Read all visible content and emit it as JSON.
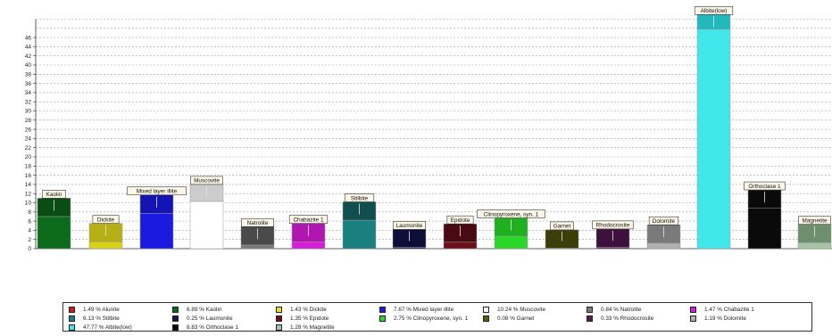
{
  "chart_data": {
    "type": "bar",
    "title": "",
    "xlabel": "",
    "ylabel": "",
    "ylim": [
      0,
      50
    ],
    "yticks": [
      0,
      2,
      4,
      6,
      8,
      10,
      12,
      14,
      16,
      18,
      20,
      22,
      24,
      26,
      28,
      30,
      32,
      34,
      36,
      38,
      40,
      42,
      44,
      46
    ],
    "grid": true,
    "legend_position": "bottom",
    "categories": [
      "Kaolin",
      "Dickite",
      "Mixed layer illite",
      "Muscovite",
      "Natrolite",
      "Chabazite 1",
      "Stilbite",
      "Laumonite",
      "Epidote",
      "Clinopyroxene, syn. 1",
      "Garnet",
      "Rhodocrosite",
      "Dolomite",
      "Albite(low)",
      "Orthoclase 1",
      "Magnetite"
    ],
    "bars": [
      {
        "label": "Kaolin",
        "color": "#0b6b1a",
        "top_color": "#0a4d12",
        "total": 11,
        "lower": 7
      },
      {
        "label": "Dickite",
        "color": "#d9d21b",
        "top_color": "#b7b014",
        "total": 5.5,
        "lower": 1.5
      },
      {
        "label": "Mixed layer illite",
        "color": "#1a1ae0",
        "top_color": "#1414b4",
        "total": 11.7,
        "lower": 7.7
      },
      {
        "label": "Muscovite",
        "color": "#ffffff",
        "top_color": "#cccccc",
        "total": 14,
        "lower": 10.3
      },
      {
        "label": "Natrolite",
        "color": "#7a7a7a",
        "top_color": "#4a4a4a",
        "total": 4.8,
        "lower": 0.8
      },
      {
        "label": "Chabazite 1",
        "color": "#d51fd5",
        "top_color": "#b016b0",
        "total": 5.5,
        "lower": 1.5
      },
      {
        "label": "Stilbite",
        "color": "#1a7f7f",
        "top_color": "#114f4f",
        "total": 10.2,
        "lower": 6.2
      },
      {
        "label": "Laumonite",
        "color": "#141452",
        "top_color": "#0d0d3a",
        "total": 4.2,
        "lower": 0.3
      },
      {
        "label": "Epidote",
        "color": "#6b0f1a",
        "top_color": "#4a0a12",
        "total": 5.4,
        "lower": 1.4
      },
      {
        "label": "Clinopyroxene, syn. 1",
        "color": "#2ad82a",
        "top_color": "#1fb01f",
        "total": 6.7,
        "lower": 2.7
      },
      {
        "label": "Garnet",
        "color": "#5a5a10",
        "top_color": "#3d3d0a",
        "total": 4.1,
        "lower": 0.1
      },
      {
        "label": "Rhodocrosite",
        "color": "#5a1a5a",
        "top_color": "#3d103d",
        "total": 4.3,
        "lower": 0.3
      },
      {
        "label": "Dolomite",
        "color": "#b0b0b0",
        "top_color": "#7a7a7a",
        "total": 5.2,
        "lower": 1.2
      },
      {
        "label": "Albite(low)",
        "color": "#40e8ec",
        "top_color": "#22b8bc",
        "total": 51,
        "lower": 47.8
      },
      {
        "label": "Orthoclase 1",
        "color": "#0a0a0a",
        "top_color": "#0a0a0a",
        "total": 12.8,
        "lower": 8.8
      },
      {
        "label": "Magnetite",
        "color": "#a8c4a8",
        "top_color": "#6d8f6d",
        "total": 5.3,
        "lower": 1.3
      }
    ],
    "legend": [
      {
        "text": "1.49 % Alunite",
        "color": "#c81e1e"
      },
      {
        "text": "6.89 % Kaolin",
        "color": "#0b6b1a"
      },
      {
        "text": "1.43 % Dickite",
        "color": "#e8e020"
      },
      {
        "text": "7.67 % Mixed layer illite",
        "color": "#1a1ae0"
      },
      {
        "text": "10.24 % Muscovite",
        "color": "#ffffff"
      },
      {
        "text": "0.84 % Natrolite",
        "color": "#7a7a7a"
      },
      {
        "text": "1.47 % Chabazite 1",
        "color": "#d51fd5"
      },
      {
        "text": "6.13 % Stilbite",
        "color": "#1a7f7f"
      },
      {
        "text": "0.25 % Laumonite",
        "color": "#141452"
      },
      {
        "text": "1.35 % Epidote",
        "color": "#6b0f1a"
      },
      {
        "text": "2.75 % Clinopyroxene, syn. 1",
        "color": "#2ad82a"
      },
      {
        "text": "0.08 % Garnet",
        "color": "#5a5a10"
      },
      {
        "text": "0.33 % Rhodocrosite",
        "color": "#5a1a5a"
      },
      {
        "text": "1.19 % Dolomite",
        "color": "#b0b0b0"
      },
      {
        "text": "47.77 % Albite(low)",
        "color": "#40e8ec"
      },
      {
        "text": "8.83 % Orthoclase 1",
        "color": "#0a0a0a"
      },
      {
        "text": "1.28 % Magnetite",
        "color": "#a8c4a8"
      }
    ]
  }
}
